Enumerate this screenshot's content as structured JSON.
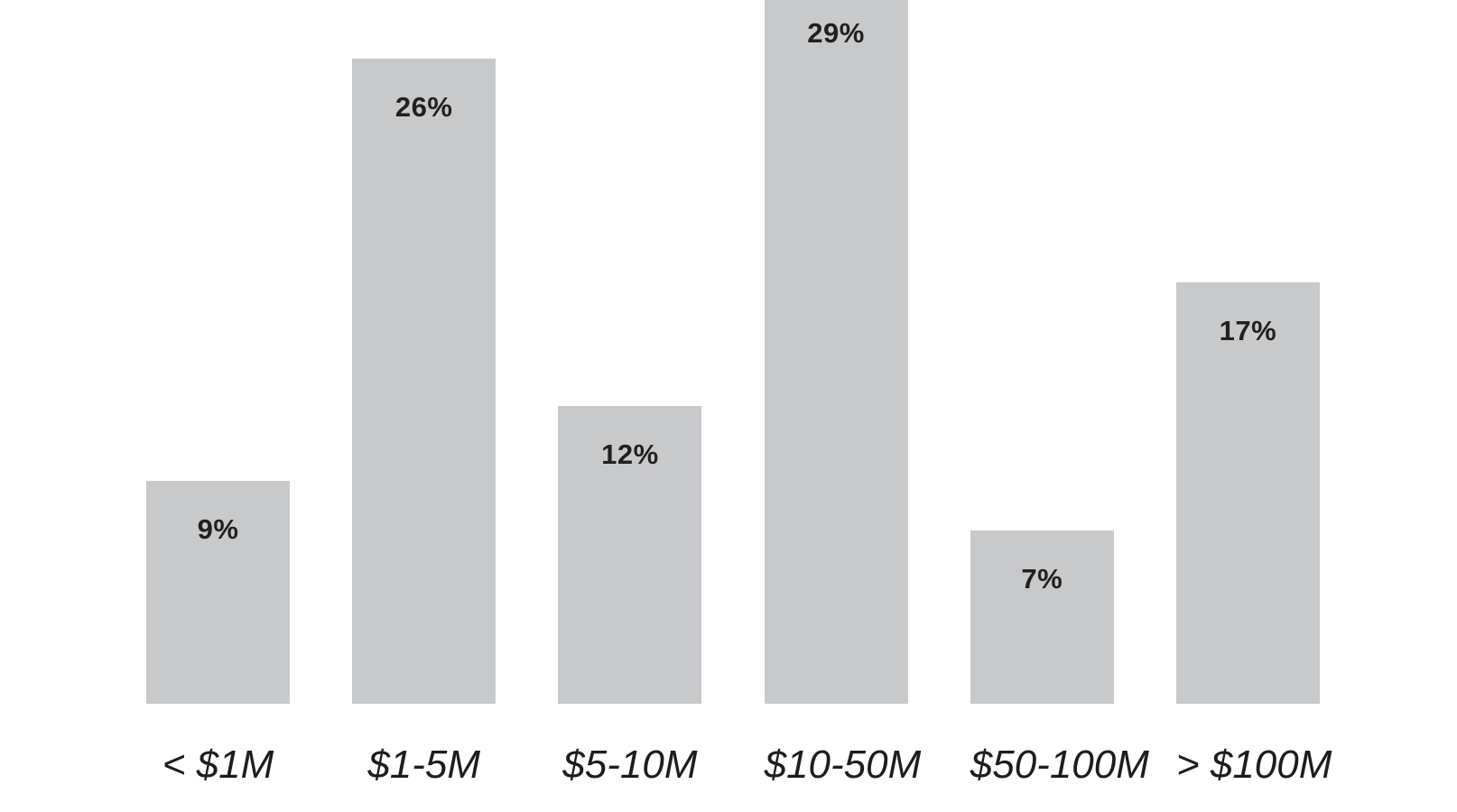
{
  "chart_data": {
    "type": "bar",
    "categories": [
      "< $1M",
      "$1-5M",
      "$5-10M",
      "$10-50M",
      "$50-100M",
      "> $100M"
    ],
    "values": [
      9,
      26,
      12,
      29,
      7,
      17
    ],
    "value_labels": [
      "9%",
      "26%",
      "12%",
      "29%",
      "7%",
      "17%"
    ],
    "unit": "%",
    "title": "",
    "xlabel": "",
    "ylabel": "",
    "ylim": [
      0,
      29
    ],
    "grid": false,
    "legend": null,
    "value_label_position": "inside-top",
    "x_axis_style": "italic",
    "clipped_bars": [
      "$10-50M"
    ],
    "colors": {
      "bar": "#C8C9CB",
      "value_label": "#231F20",
      "axis_label": "#1D1D1F",
      "background": "#FFFFFF"
    }
  }
}
